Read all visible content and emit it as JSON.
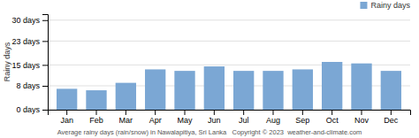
{
  "chart_data": {
    "type": "bar",
    "categories": [
      "Jan",
      "Feb",
      "Mar",
      "Apr",
      "May",
      "Jun",
      "Jul",
      "Aug",
      "Sep",
      "Oct",
      "Nov",
      "Dec"
    ],
    "series": [
      {
        "name": "Rainy days",
        "color": "#7ba7d4",
        "values": [
          7,
          6.5,
          9,
          13.5,
          13,
          14.5,
          13,
          13,
          13.5,
          16,
          15.5,
          13
        ]
      }
    ],
    "ylabel": "Rainy days",
    "xlabel": "Average rainy days (rain/snow) in Nawalapitiya, Sri Lanka   Copyright © 2023  weather-and-climate.com",
    "ylim": [
      0,
      32
    ],
    "yticks": [
      {
        "value": 0,
        "label": "0 days"
      },
      {
        "value": 8,
        "label": "8 days"
      },
      {
        "value": 15,
        "label": "15 days"
      },
      {
        "value": 23,
        "label": "23 days"
      },
      {
        "value": 30,
        "label": "30 days"
      }
    ],
    "grid": true,
    "legend": "upper-right"
  }
}
